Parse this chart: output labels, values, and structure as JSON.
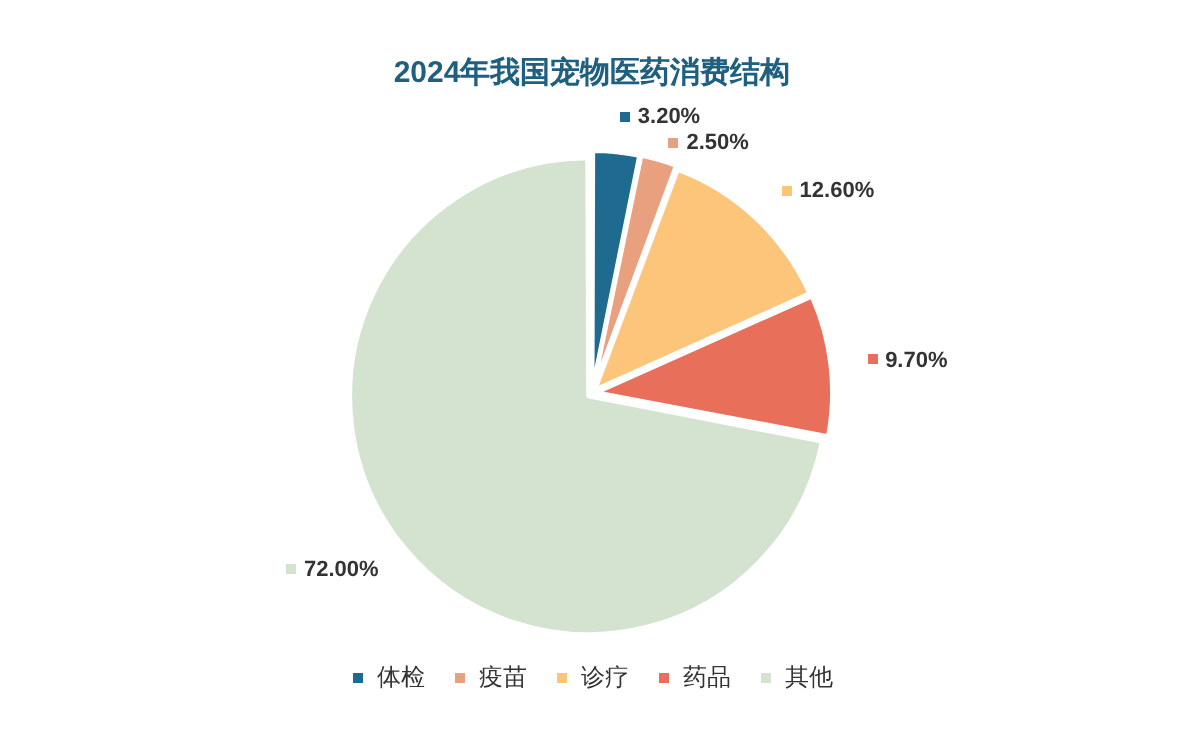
{
  "chart_data": {
    "type": "pie",
    "title": "2024年我国宠物医药消费结构",
    "categories": [
      "体检",
      "疫苗",
      "诊疗",
      "药品",
      "其他"
    ],
    "values": [
      3.2,
      2.5,
      12.6,
      9.7,
      72
    ],
    "value_labels": [
      "3.20%",
      "2.50%",
      "12.60%",
      "9.70%",
      "72.00%"
    ],
    "colors": [
      "#1f6b8f",
      "#e8a07f",
      "#fdc57a",
      "#e8705a",
      "#d3e3d0"
    ],
    "legend": "bottom"
  }
}
